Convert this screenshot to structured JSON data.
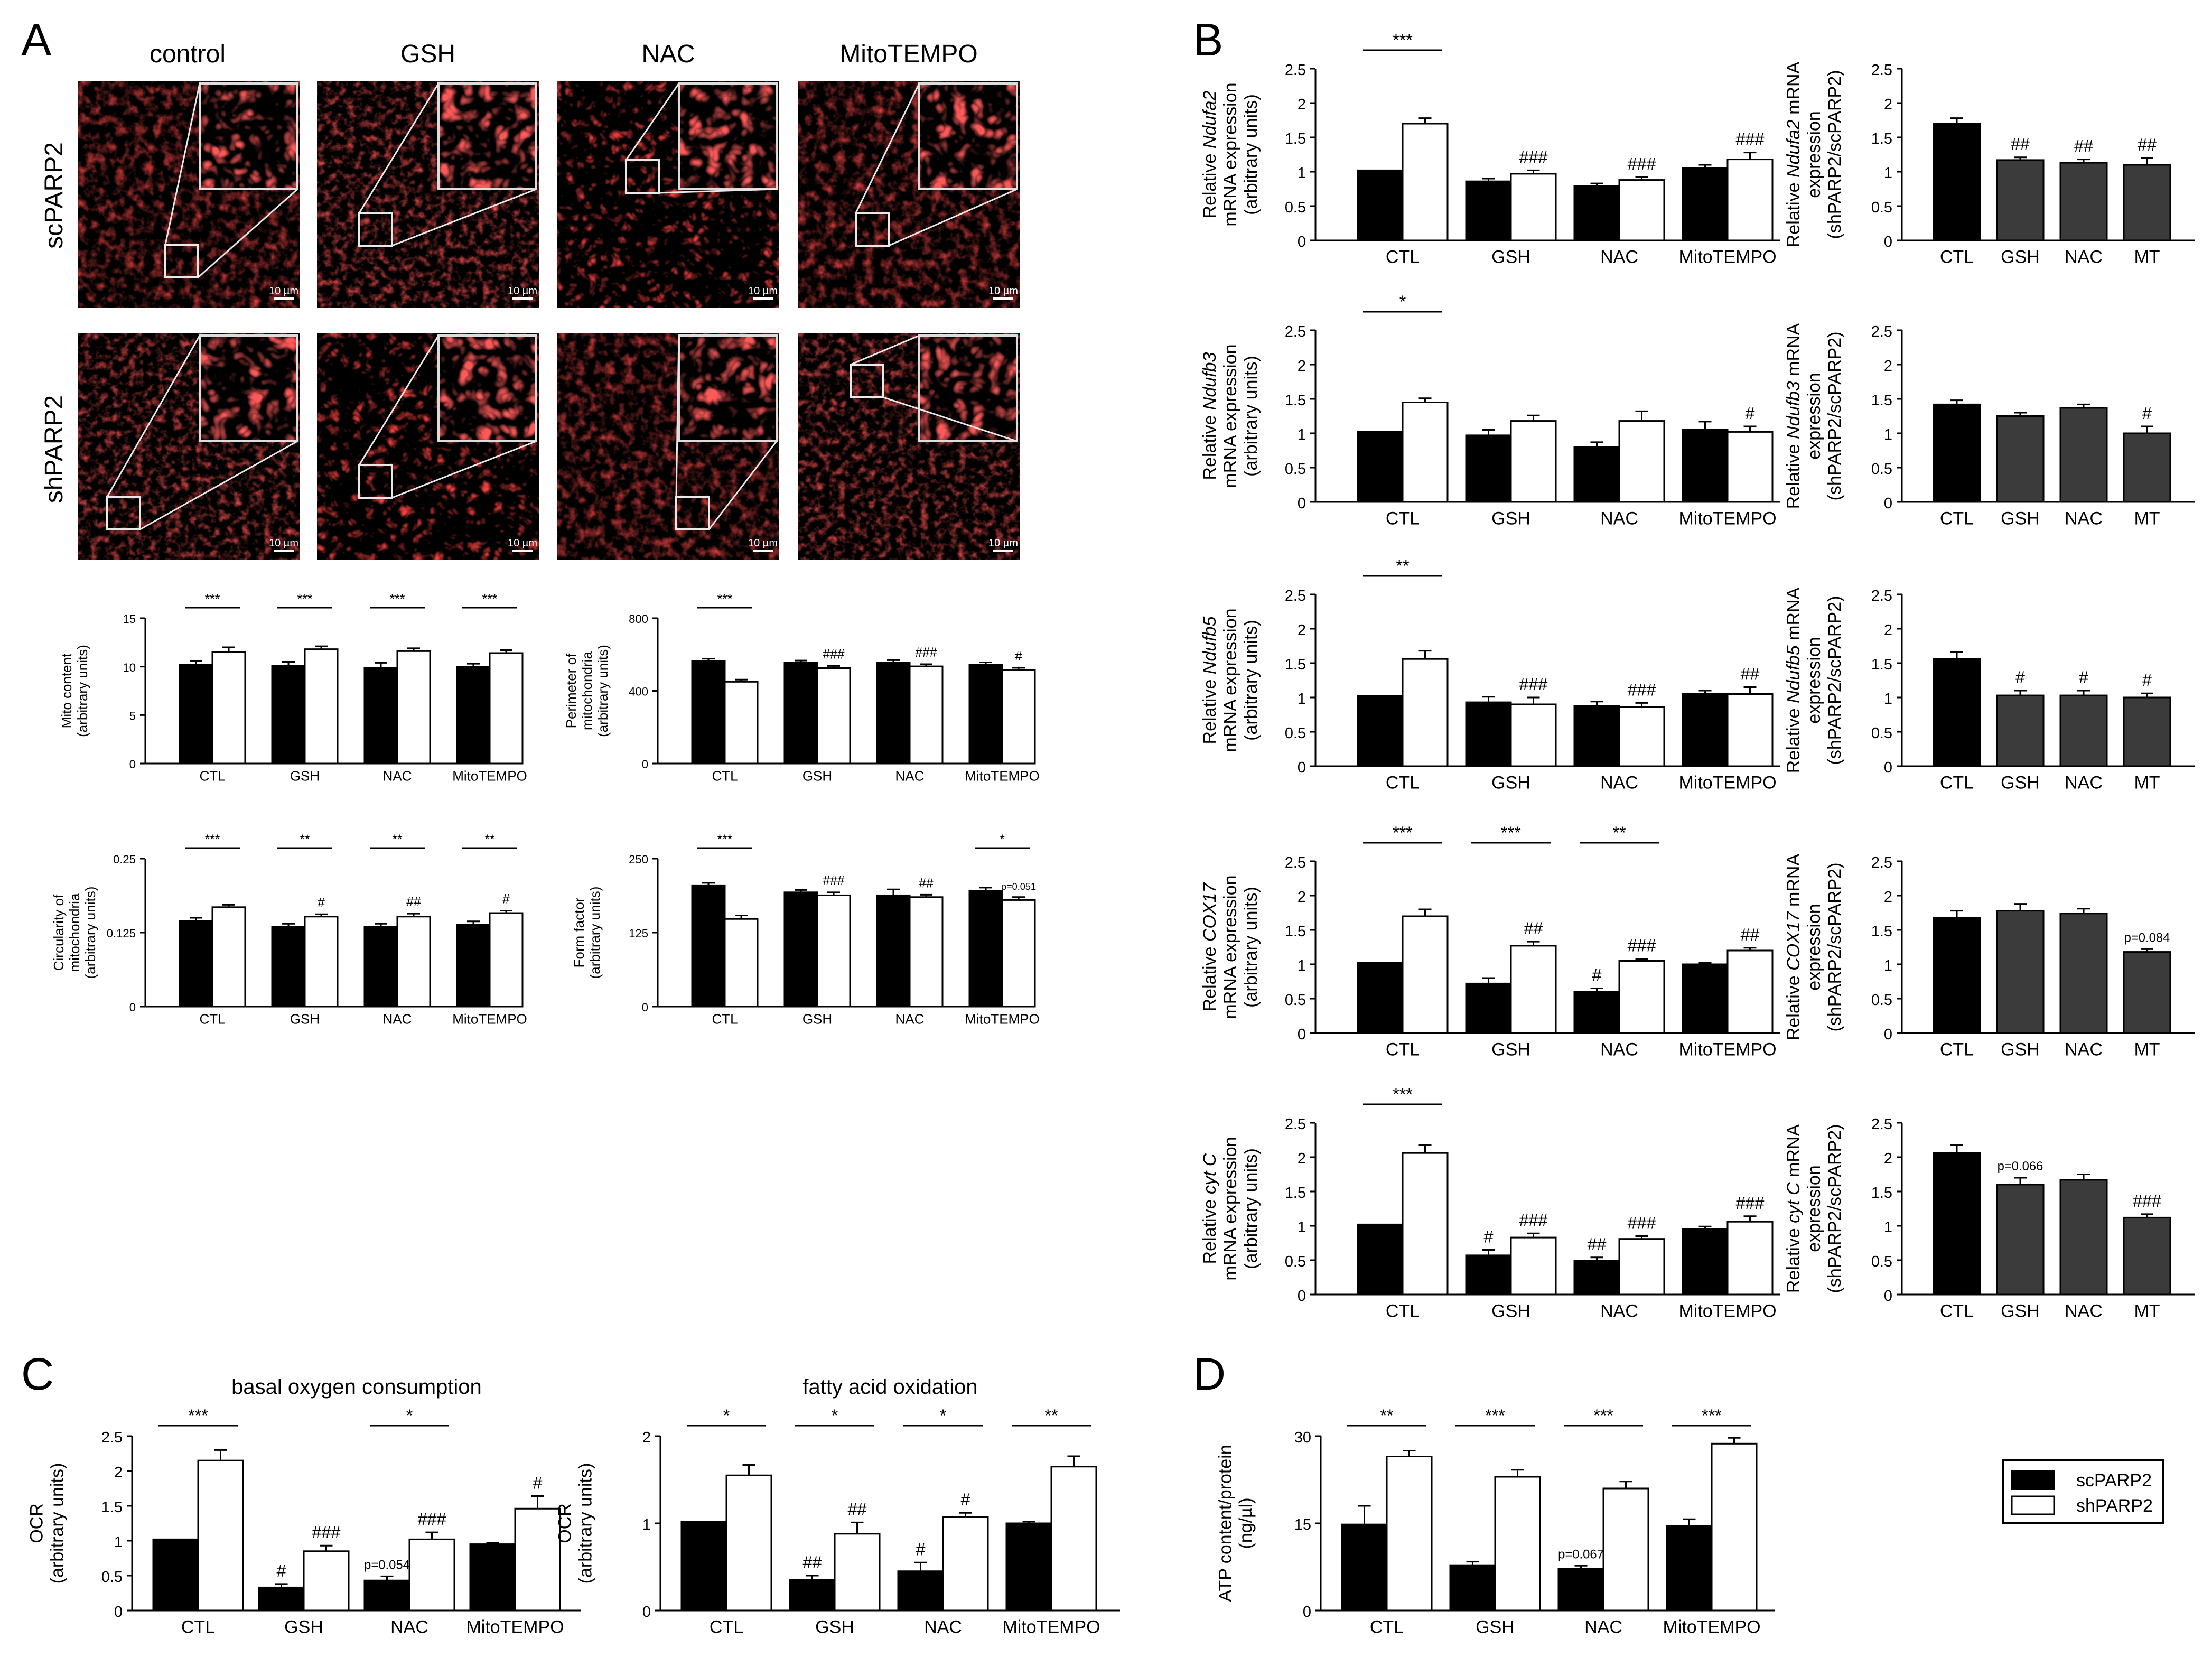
{
  "panel_labels": {
    "a": "A",
    "b": "B",
    "c": "C",
    "d": "D"
  },
  "micrographs": {
    "columns": [
      "control",
      "GSH",
      "NAC",
      "MitoTEMPO"
    ],
    "rows": [
      "scPARP2",
      "shPARP2"
    ],
    "scale_bar": "10 µm"
  },
  "legend": {
    "series": [
      "scPARP2",
      "shPARP2"
    ]
  },
  "colors": {
    "scPARP2": "#000000",
    "shPARP2": "#ffffff",
    "ratio": "#3b3b3b",
    "mito": "#e81515"
  },
  "chart_data": [
    {
      "id": "A1",
      "type": "bar",
      "categories": [
        "CTL",
        "GSH",
        "NAC",
        "MitoTEMPO"
      ],
      "ylabel": "Mito content (arbitrary units)",
      "ylim": [
        0,
        15
      ],
      "yticks": [
        0,
        5,
        10,
        15
      ],
      "series": [
        {
          "name": "scPARP2",
          "values": [
            10.2,
            10.1,
            9.9,
            10.0
          ],
          "errors": [
            0.4,
            0.4,
            0.5,
            0.3
          ]
        },
        {
          "name": "shPARP2",
          "values": [
            11.5,
            11.8,
            11.6,
            11.4
          ],
          "errors": [
            0.5,
            0.3,
            0.3,
            0.3
          ]
        }
      ],
      "brackets": [
        "***",
        "***",
        "***",
        "***"
      ],
      "annotations": [
        [
          "",
          ""
        ],
        [
          "",
          ""
        ],
        [
          "",
          ""
        ],
        [
          "",
          ""
        ]
      ]
    },
    {
      "id": "A2",
      "type": "bar",
      "categories": [
        "CTL",
        "GSH",
        "NAC",
        "MitoTEMPO"
      ],
      "ylabel": "Perimeter of mitochondria (arbitrary units)",
      "ylim": [
        0,
        800
      ],
      "yticks": [
        0,
        400,
        800
      ],
      "series": [
        {
          "name": "scPARP2",
          "values": [
            565,
            555,
            555,
            545
          ],
          "errors": [
            12,
            12,
            14,
            12
          ]
        },
        {
          "name": "shPARP2",
          "values": [
            450,
            525,
            535,
            515
          ],
          "errors": [
            12,
            12,
            12,
            12
          ]
        }
      ],
      "brackets": [
        "***",
        "",
        "",
        ""
      ],
      "annotations": [
        [
          "",
          ""
        ],
        [
          "",
          "###"
        ],
        [
          "",
          "###"
        ],
        [
          "",
          "#"
        ]
      ]
    },
    {
      "id": "A3",
      "type": "bar",
      "categories": [
        "CTL",
        "GSH",
        "NAC",
        "MitoTEMPO"
      ],
      "ylabel": "Circularity of mitochondria (arbitrary units)",
      "ylim": [
        0,
        0.25
      ],
      "yticks": [
        0,
        0.125,
        0.25
      ],
      "series": [
        {
          "name": "scPARP2",
          "values": [
            0.145,
            0.135,
            0.135,
            0.138
          ],
          "errors": [
            0.005,
            0.005,
            0.005,
            0.006
          ]
        },
        {
          "name": "shPARP2",
          "values": [
            0.168,
            0.152,
            0.152,
            0.158
          ],
          "errors": [
            0.004,
            0.004,
            0.005,
            0.004
          ]
        }
      ],
      "brackets": [
        "***",
        "**",
        "**",
        "**"
      ],
      "annotations": [
        [
          "",
          ""
        ],
        [
          "",
          "#"
        ],
        [
          "",
          "##"
        ],
        [
          "",
          "#"
        ]
      ]
    },
    {
      "id": "A4",
      "type": "bar",
      "categories": [
        "CTL",
        "GSH",
        "NAC",
        "MitoTEMPO"
      ],
      "ylabel": "Form factor (arbitrary units)",
      "ylim": [
        0,
        250
      ],
      "yticks": [
        0,
        125,
        250
      ],
      "series": [
        {
          "name": "scPARP2",
          "values": [
            205,
            193,
            188,
            196
          ],
          "errors": [
            4,
            4,
            10,
            5
          ]
        },
        {
          "name": "shPARP2",
          "values": [
            148,
            188,
            185,
            180
          ],
          "errors": [
            6,
            5,
            4,
            5
          ]
        }
      ],
      "brackets": [
        "***",
        "",
        "",
        "*"
      ],
      "annotations": [
        [
          "",
          ""
        ],
        [
          "",
          "###"
        ],
        [
          "",
          "##"
        ],
        [
          "",
          "p=0.051"
        ]
      ]
    },
    {
      "id": "B1",
      "type": "bar",
      "categories": [
        "CTL",
        "GSH",
        "NAC",
        "MitoTEMPO"
      ],
      "ylabel_parts": [
        "Relative ",
        "Ndufa2",
        " mRNA expression (arbitrary units)"
      ],
      "ylim": [
        0,
        2.5
      ],
      "yticks": [
        0,
        0.5,
        1,
        1.5,
        2,
        2.5
      ],
      "series": [
        {
          "name": "scPARP2",
          "values": [
            1.02,
            0.86,
            0.79,
            1.05
          ],
          "errors": [
            0,
            0.04,
            0.04,
            0.05
          ]
        },
        {
          "name": "shPARP2",
          "values": [
            1.7,
            0.97,
            0.88,
            1.18
          ],
          "errors": [
            0.08,
            0.05,
            0.04,
            0.1
          ]
        }
      ],
      "brackets": [
        "***",
        "",
        "",
        ""
      ],
      "annotations": [
        [
          "",
          ""
        ],
        [
          "",
          "###"
        ],
        [
          "",
          "###"
        ],
        [
          "",
          "###"
        ]
      ]
    },
    {
      "id": "B2",
      "type": "bar",
      "categories": [
        "CTL",
        "GSH",
        "NAC",
        "MT"
      ],
      "ylabel_parts": [
        "Relative ",
        "Ndufa2",
        " mRNA expression (shPARP2/scPARP2)"
      ],
      "ylim": [
        0,
        2.5
      ],
      "yticks": [
        0,
        0.5,
        1,
        1.5,
        2,
        2.5
      ],
      "series": [
        {
          "name": "shPARP2/scPARP2",
          "values": [
            1.7,
            1.17,
            1.13,
            1.1
          ],
          "errors": [
            0.08,
            0.04,
            0.05,
            0.1
          ]
        }
      ],
      "brackets": [
        "",
        "",
        "",
        ""
      ],
      "annotations": [
        [
          ""
        ],
        [
          "##"
        ],
        [
          "##"
        ],
        [
          "##"
        ]
      ]
    },
    {
      "id": "B3",
      "type": "bar",
      "categories": [
        "CTL",
        "GSH",
        "NAC",
        "MitoTEMPO"
      ],
      "ylabel_parts": [
        "Relative ",
        "Ndufb3",
        " mRNA expression (arbitrary units)"
      ],
      "ylim": [
        0,
        2.5
      ],
      "yticks": [
        0,
        0.5,
        1,
        1.5,
        2,
        2.5
      ],
      "series": [
        {
          "name": "scPARP2",
          "values": [
            1.02,
            0.97,
            0.8,
            1.05
          ],
          "errors": [
            0,
            0.08,
            0.07,
            0.12
          ]
        },
        {
          "name": "shPARP2",
          "values": [
            1.45,
            1.18,
            1.18,
            1.02
          ],
          "errors": [
            0.06,
            0.08,
            0.14,
            0.08
          ]
        }
      ],
      "brackets": [
        "*",
        "",
        "",
        ""
      ],
      "annotations": [
        [
          "",
          ""
        ],
        [
          "",
          ""
        ],
        [
          "",
          ""
        ],
        [
          "",
          "#"
        ]
      ]
    },
    {
      "id": "B4",
      "type": "bar",
      "categories": [
        "CTL",
        "GSH",
        "NAC",
        "MT"
      ],
      "ylabel_parts": [
        "Relative ",
        "Ndufb3",
        " mRNA expression (shPARP2/scPARP2)"
      ],
      "ylim": [
        0,
        2.5
      ],
      "yticks": [
        0,
        0.5,
        1,
        1.5,
        2,
        2.5
      ],
      "series": [
        {
          "name": "shPARP2/scPARP2",
          "values": [
            1.42,
            1.25,
            1.37,
            1.0
          ],
          "errors": [
            0.06,
            0.05,
            0.05,
            0.1
          ]
        }
      ],
      "brackets": [
        "",
        "",
        "",
        ""
      ],
      "annotations": [
        [
          ""
        ],
        [
          ""
        ],
        [
          ""
        ],
        [
          "#"
        ]
      ]
    },
    {
      "id": "B5",
      "type": "bar",
      "categories": [
        "CTL",
        "GSH",
        "NAC",
        "MitoTEMPO"
      ],
      "ylabel_parts": [
        "Relative ",
        "Ndufb5",
        " mRNA expression (arbitrary units)"
      ],
      "ylim": [
        0,
        2.5
      ],
      "yticks": [
        0,
        0.5,
        1,
        1.5,
        2,
        2.5
      ],
      "series": [
        {
          "name": "scPARP2",
          "values": [
            1.02,
            0.93,
            0.88,
            1.05
          ],
          "errors": [
            0,
            0.08,
            0.06,
            0.05
          ]
        },
        {
          "name": "shPARP2",
          "values": [
            1.56,
            0.9,
            0.86,
            1.05
          ],
          "errors": [
            0.12,
            0.1,
            0.06,
            0.1
          ]
        }
      ],
      "brackets": [
        "**",
        "",
        "",
        ""
      ],
      "annotations": [
        [
          "",
          ""
        ],
        [
          "",
          "###"
        ],
        [
          "",
          "###"
        ],
        [
          "",
          "##"
        ]
      ]
    },
    {
      "id": "B6",
      "type": "bar",
      "categories": [
        "CTL",
        "GSH",
        "NAC",
        "MT"
      ],
      "ylabel_parts": [
        "Relative ",
        "Ndufb5",
        " mRNA expression (shPARP2/scPARP2)"
      ],
      "ylim": [
        0,
        2.5
      ],
      "yticks": [
        0,
        0.5,
        1,
        1.5,
        2,
        2.5
      ],
      "series": [
        {
          "name": "shPARP2/scPARP2",
          "values": [
            1.56,
            1.03,
            1.03,
            1.0
          ],
          "errors": [
            0.1,
            0.07,
            0.07,
            0.06
          ]
        }
      ],
      "brackets": [
        "",
        "",
        "",
        ""
      ],
      "annotations": [
        [
          ""
        ],
        [
          "#"
        ],
        [
          "#"
        ],
        [
          "#"
        ]
      ]
    },
    {
      "id": "B7",
      "type": "bar",
      "categories": [
        "CTL",
        "GSH",
        "NAC",
        "MitoTEMPO"
      ],
      "ylabel_parts": [
        "Relative ",
        "COX17",
        " mRNA expression (arbitrary units)"
      ],
      "ylim": [
        0,
        2.5
      ],
      "yticks": [
        0,
        0.5,
        1,
        1.5,
        2,
        2.5
      ],
      "series": [
        {
          "name": "scPARP2",
          "values": [
            1.02,
            0.72,
            0.6,
            1.0
          ],
          "errors": [
            0,
            0.08,
            0.05,
            0.02
          ]
        },
        {
          "name": "shPARP2",
          "values": [
            1.7,
            1.27,
            1.05,
            1.2
          ],
          "errors": [
            0.1,
            0.06,
            0.03,
            0.04
          ]
        }
      ],
      "brackets": [
        "***",
        "***",
        "**",
        ""
      ],
      "annotations": [
        [
          "",
          ""
        ],
        [
          "",
          "##"
        ],
        [
          "#",
          "###"
        ],
        [
          "",
          "##"
        ]
      ]
    },
    {
      "id": "B8",
      "type": "bar",
      "categories": [
        "CTL",
        "GSH",
        "NAC",
        "MT"
      ],
      "ylabel_parts": [
        "Relative ",
        "COX17",
        " mRNA expression (shPARP2/scPARP2)"
      ],
      "ylim": [
        0,
        2.5
      ],
      "yticks": [
        0,
        0.5,
        1,
        1.5,
        2,
        2.5
      ],
      "series": [
        {
          "name": "shPARP2/scPARP2",
          "values": [
            1.68,
            1.78,
            1.74,
            1.18
          ],
          "errors": [
            0.1,
            0.1,
            0.07,
            0.04
          ]
        }
      ],
      "brackets": [
        "",
        "",
        "",
        ""
      ],
      "annotations": [
        [
          ""
        ],
        [
          ""
        ],
        [
          ""
        ],
        [
          "p=0.084"
        ]
      ]
    },
    {
      "id": "B9",
      "type": "bar",
      "categories": [
        "CTL",
        "GSH",
        "NAC",
        "MitoTEMPO"
      ],
      "ylabel_parts": [
        "Relative ",
        "cyt C",
        " mRNA expression (arbitrary units)"
      ],
      "ylim": [
        0,
        2.5
      ],
      "yticks": [
        0,
        0.5,
        1,
        1.5,
        2,
        2.5
      ],
      "series": [
        {
          "name": "scPARP2",
          "values": [
            1.02,
            0.57,
            0.49,
            0.95
          ],
          "errors": [
            0,
            0.08,
            0.05,
            0.04
          ]
        },
        {
          "name": "shPARP2",
          "values": [
            2.06,
            0.83,
            0.81,
            1.06
          ],
          "errors": [
            0.12,
            0.06,
            0.04,
            0.08
          ]
        }
      ],
      "brackets": [
        "***",
        "",
        "",
        ""
      ],
      "annotations": [
        [
          "",
          ""
        ],
        [
          "#",
          "###"
        ],
        [
          "##",
          "###"
        ],
        [
          "",
          "###"
        ]
      ]
    },
    {
      "id": "B10",
      "type": "bar",
      "categories": [
        "CTL",
        "GSH",
        "NAC",
        "MT"
      ],
      "ylabel_parts": [
        "Relative ",
        "cyt C",
        " mRNA expression (shPARP2/scPARP2)"
      ],
      "ylim": [
        0,
        2.5
      ],
      "yticks": [
        0,
        0.5,
        1,
        1.5,
        2,
        2.5
      ],
      "series": [
        {
          "name": "shPARP2/scPARP2",
          "values": [
            2.06,
            1.6,
            1.67,
            1.12
          ],
          "errors": [
            0.12,
            0.1,
            0.08,
            0.05
          ]
        }
      ],
      "brackets": [
        "",
        "",
        "",
        ""
      ],
      "annotations": [
        [
          ""
        ],
        [
          "p=0.066"
        ],
        [
          ""
        ],
        [
          "###"
        ]
      ]
    },
    {
      "id": "C1",
      "type": "bar",
      "title": "basal oxygen consumption",
      "categories": [
        "CTL",
        "GSH",
        "NAC",
        "MitoTEMPO"
      ],
      "ylabel": "OCR (arbitrary units)",
      "ylim": [
        0,
        2.5
      ],
      "yticks": [
        0,
        0.5,
        1,
        1.5,
        2,
        2.5
      ],
      "series": [
        {
          "name": "scPARP2",
          "values": [
            1.02,
            0.33,
            0.43,
            0.95
          ],
          "errors": [
            0,
            0.05,
            0.06,
            0.02
          ]
        },
        {
          "name": "shPARP2",
          "values": [
            2.15,
            0.85,
            1.02,
            1.46
          ],
          "errors": [
            0.15,
            0.08,
            0.1,
            0.18
          ]
        }
      ],
      "brackets": [
        "***",
        "",
        "*",
        ""
      ],
      "annotations": [
        [
          "",
          ""
        ],
        [
          "#",
          "###"
        ],
        [
          "p=0.054",
          "###"
        ],
        [
          "",
          "#"
        ]
      ]
    },
    {
      "id": "C2",
      "type": "bar",
      "title": "fatty acid oxidation",
      "categories": [
        "CTL",
        "GSH",
        "NAC",
        "MitoTEMPO"
      ],
      "ylabel": "OCR (arbitrary units)",
      "ylim": [
        0,
        2
      ],
      "yticks": [
        0,
        1,
        2
      ],
      "series": [
        {
          "name": "scPARP2",
          "values": [
            1.02,
            0.35,
            0.45,
            1.0
          ],
          "errors": [
            0,
            0.05,
            0.1,
            0.02
          ]
        },
        {
          "name": "shPARP2",
          "values": [
            1.55,
            0.88,
            1.07,
            1.65
          ],
          "errors": [
            0.12,
            0.13,
            0.05,
            0.12
          ]
        }
      ],
      "brackets": [
        "*",
        "*",
        "*",
        "**"
      ],
      "annotations": [
        [
          "",
          ""
        ],
        [
          "##",
          "##"
        ],
        [
          "#",
          "#"
        ],
        [
          "",
          ""
        ]
      ]
    },
    {
      "id": "D1",
      "type": "bar",
      "categories": [
        "CTL",
        "GSH",
        "NAC",
        "MitoTEMPO"
      ],
      "ylabel": "ATP content/protein (ng/µl)",
      "ylim": [
        0,
        30
      ],
      "yticks": [
        0,
        15,
        30
      ],
      "series": [
        {
          "name": "scPARP2",
          "values": [
            14.8,
            7.8,
            7.2,
            14.5
          ],
          "errors": [
            3.2,
            0.6,
            0.5,
            1.2
          ]
        },
        {
          "name": "shPARP2",
          "values": [
            26.5,
            23.0,
            21.0,
            28.7
          ],
          "errors": [
            1.0,
            1.2,
            1.2,
            1.0
          ]
        }
      ],
      "brackets": [
        "**",
        "***",
        "***",
        "***"
      ],
      "annotations": [
        [
          "",
          ""
        ],
        [
          "",
          ""
        ],
        [
          "p=0.067",
          ""
        ],
        [
          "",
          ""
        ]
      ]
    }
  ]
}
